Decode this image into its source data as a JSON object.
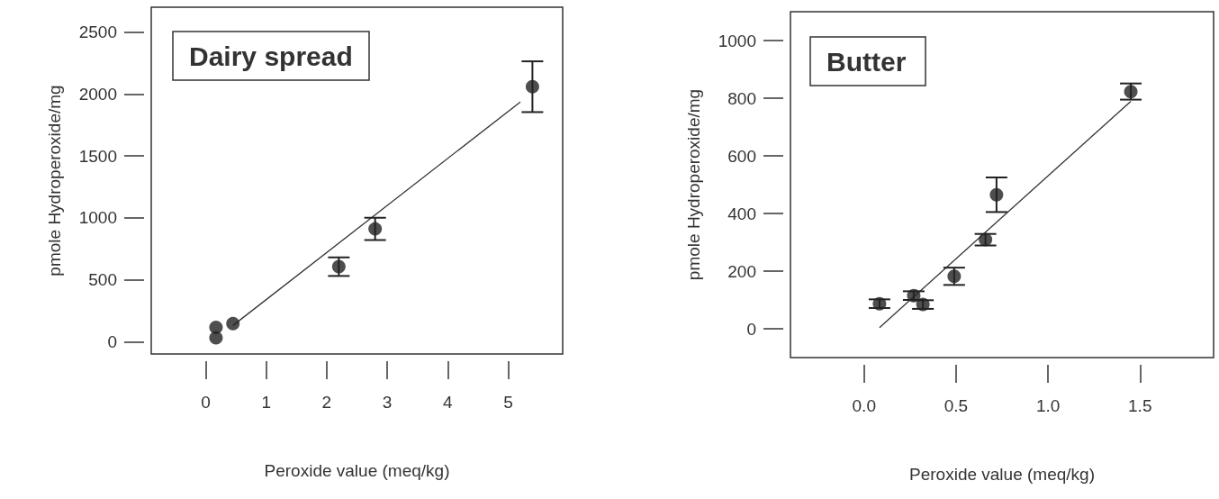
{
  "chart_data": [
    {
      "type": "scatter",
      "title": "Dairy spread",
      "xlabel": "Peroxide value (meq/kg)",
      "ylabel": "pmole Hydroperoxide/mg",
      "xlim": [
        -0.9,
        5.9
      ],
      "xticks": [
        0,
        1,
        2,
        3,
        4,
        5
      ],
      "ylim": [
        -100,
        2700
      ],
      "yticks": [
        0,
        500,
        1000,
        1500,
        2000,
        2500
      ],
      "marker": "circle",
      "series": [
        {
          "color": "#222222",
          "x": [
            0.17,
            0.17,
            0.45,
            2.2,
            2.8,
            5.4
          ],
          "values": [
            30,
            114,
            145,
            605,
            910,
            2058
          ],
          "errors": [
            null,
            null,
            null,
            75,
            90,
            205
          ]
        },
        {
          "type": "line",
          "marker": "none",
          "color": "#333333",
          "x": [
            0.45,
            5.2
          ],
          "values": [
            130,
            1935
          ]
        }
      ]
    },
    {
      "type": "scatter",
      "title": "Butter",
      "xlabel": "Peroxide value (meq/kg)",
      "ylabel": "pmole Hydroperoxide/mg",
      "xlim": [
        -0.4,
        1.9
      ],
      "xticks": [
        {
          "value": 0,
          "label": "0.0"
        },
        0.5,
        {
          "value": 1,
          "label": "1.0"
        },
        1.5
      ],
      "ylim": [
        -100,
        1100
      ],
      "yticks": [
        0,
        200,
        400,
        600,
        800,
        1000
      ],
      "marker": "circle",
      "series": [
        {
          "color": "#222222",
          "x": [
            0.084,
            0.27,
            0.32,
            0.49,
            0.66,
            0.72,
            1.45
          ],
          "values": [
            87,
            115,
            84,
            182,
            309,
            465,
            823
          ],
          "errors": [
            15,
            15,
            15,
            30,
            20,
            60,
            28
          ]
        },
        {
          "type": "line",
          "marker": "none",
          "color": "#333333",
          "x": [
            0.084,
            1.45
          ],
          "values": [
            4,
            789
          ]
        }
      ]
    }
  ]
}
